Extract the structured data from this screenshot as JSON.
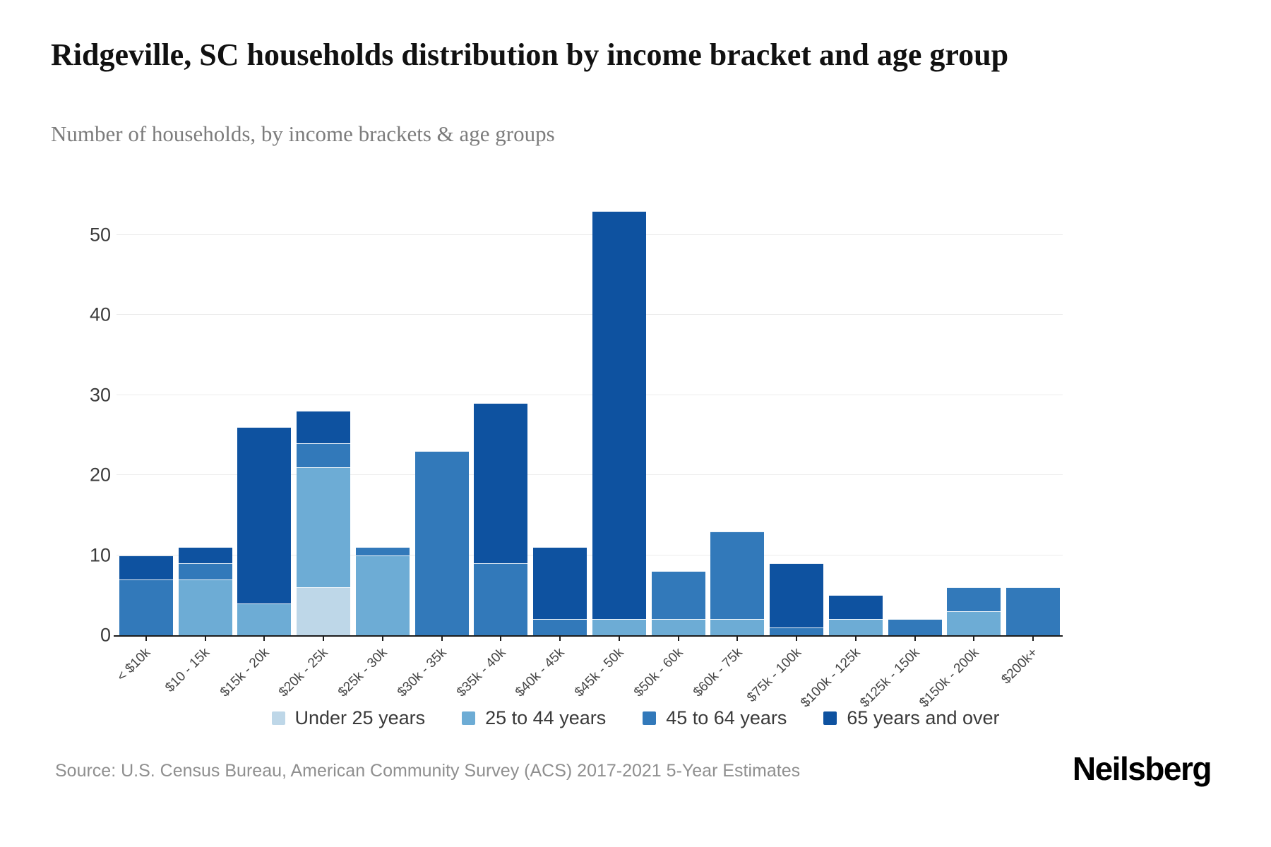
{
  "header": {
    "title": "Ridgeville, SC households distribution by income bracket and age group",
    "subtitle": "Number of households, by income brackets & age groups"
  },
  "chart_data": {
    "type": "bar",
    "stacked": true,
    "title": "Ridgeville, SC households distribution by income bracket and age group",
    "xlabel": "",
    "ylabel": "Number of households",
    "categories": [
      "< $10k",
      "$10 - 15k",
      "$15k - 20k",
      "$20k - 25k",
      "$25k - 30k",
      "$30k - 35k",
      "$35k - 40k",
      "$40k - 45k",
      "$45k - 50k",
      "$50k - 60k",
      "$60k - 75k",
      "$75k - 100k",
      "$100k - 125k",
      "$125k - 150k",
      "$150k - 200k",
      "$200k+"
    ],
    "series": [
      {
        "name": "Under 25 years",
        "color": "#bed7e8",
        "values": [
          0,
          0,
          0,
          6,
          0,
          0,
          0,
          0,
          0,
          0,
          0,
          0,
          0,
          0,
          0,
          0
        ]
      },
      {
        "name": "25 to 44 years",
        "color": "#6dacd5",
        "values": [
          0,
          7,
          4,
          15,
          10,
          0,
          0,
          0,
          2,
          2,
          2,
          0,
          2,
          0,
          3,
          0
        ]
      },
      {
        "name": "45 to 64 years",
        "color": "#3279ba",
        "values": [
          7,
          2,
          0,
          3,
          1,
          23,
          9,
          2,
          0,
          6,
          11,
          1,
          0,
          2,
          3,
          6
        ]
      },
      {
        "name": "65 years and over",
        "color": "#0e52a0",
        "values": [
          3,
          2,
          22,
          4,
          0,
          0,
          20,
          9,
          51,
          0,
          0,
          8,
          3,
          0,
          0,
          0
        ]
      }
    ],
    "totals": [
      10,
      11,
      26,
      28,
      11,
      23,
      29,
      11,
      53,
      8,
      13,
      9,
      5,
      2,
      6,
      6
    ],
    "yticks": [
      0,
      10,
      20,
      30,
      40,
      50
    ],
    "ylim": [
      0,
      54.4
    ],
    "grid": true,
    "legend_position": "bottom",
    "axis_color": "#1c1c1c",
    "gridline_color": "#ececec"
  },
  "footer": {
    "source": "Source: U.S. Census Bureau, American Community Survey (ACS) 2017-2021 5-Year Estimates",
    "brand": "Neilsberg"
  }
}
